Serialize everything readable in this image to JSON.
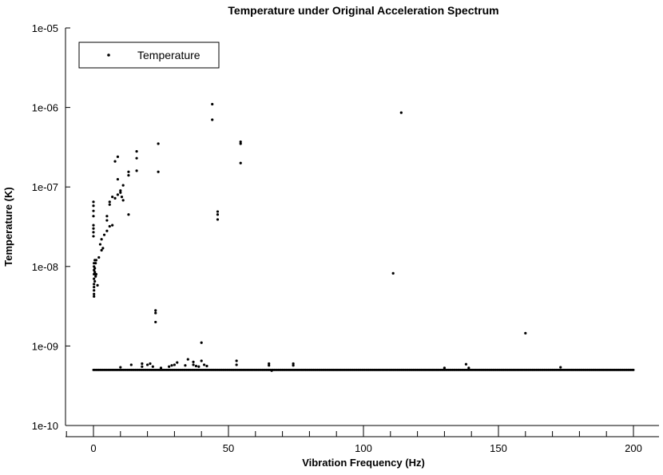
{
  "chart_data": {
    "type": "scatter",
    "title": "Temperature under Original Acceleration Spectrum",
    "xlabel": "Vibration Frequency (Hz)",
    "ylabel": "Temperature (K)",
    "xlim": [
      -10,
      210
    ],
    "ylim": [
      1e-10,
      1e-05
    ],
    "yscale": "log",
    "grid": false,
    "legend_position": "top-left",
    "x_ticks": [
      0,
      50,
      100,
      150,
      200
    ],
    "x_tick_labels": [
      "0",
      "50",
      "100",
      "150",
      "200"
    ],
    "y_ticks": [
      1e-10,
      1e-09,
      1e-08,
      1e-07,
      1e-06,
      1e-05
    ],
    "y_tick_labels": [
      "1e-10",
      "1e-09",
      "1e-08",
      "1e-07",
      "1e-06",
      "1e-05"
    ],
    "baseline": {
      "value": 5e-10,
      "x_start": 0,
      "x_end": 200,
      "step": 0.5
    },
    "series": [
      {
        "name": "Temperature",
        "color": "#000000",
        "points": [
          [
            0,
            6.5e-08
          ],
          [
            0,
            5.8e-08
          ],
          [
            0,
            5e-08
          ],
          [
            0,
            4.3e-08
          ],
          [
            0,
            3.3e-08
          ],
          [
            0,
            3e-08
          ],
          [
            0,
            2.7e-08
          ],
          [
            0,
            2.4e-08
          ],
          [
            0.2,
            1.1e-08
          ],
          [
            0.2,
            1e-08
          ],
          [
            0.2,
            9e-09
          ],
          [
            0.2,
            8e-09
          ],
          [
            0.2,
            7e-09
          ],
          [
            0.2,
            6e-09
          ],
          [
            0.2,
            5.5e-09
          ],
          [
            0.2,
            5e-09
          ],
          [
            0.2,
            4.5e-09
          ],
          [
            0.2,
            4.2e-09
          ],
          [
            0.5,
            1.2e-08
          ],
          [
            0.5,
            9.5e-09
          ],
          [
            0.5,
            8.5e-09
          ],
          [
            0.5,
            6.5e-09
          ],
          [
            0.8,
            1.1e-08
          ],
          [
            0.8,
            7.5e-09
          ],
          [
            1,
            1.2e-08
          ],
          [
            1,
            8e-09
          ],
          [
            1.5,
            5.8e-09
          ],
          [
            2,
            1.3e-08
          ],
          [
            2.5,
            1.9e-08
          ],
          [
            3,
            1.6e-08
          ],
          [
            3,
            2.2e-08
          ],
          [
            3.5,
            1.7e-08
          ],
          [
            4,
            2.5e-08
          ],
          [
            5,
            3.8e-08
          ],
          [
            5,
            4.3e-08
          ],
          [
            5,
            2.8e-08
          ],
          [
            6,
            6e-08
          ],
          [
            6,
            6.5e-08
          ],
          [
            6,
            3.2e-08
          ],
          [
            7,
            7.5e-08
          ],
          [
            7,
            3.3e-08
          ],
          [
            8,
            7.2e-08
          ],
          [
            8,
            2.1e-07
          ],
          [
            9,
            2.4e-07
          ],
          [
            9,
            1.25e-07
          ],
          [
            9,
            8e-08
          ],
          [
            10,
            9e-08
          ],
          [
            10,
            8.5e-08
          ],
          [
            10.5,
            7.5e-08
          ],
          [
            11,
            1.05e-07
          ],
          [
            11,
            6.8e-08
          ],
          [
            13,
            4.5e-08
          ],
          [
            13,
            1.4e-07
          ],
          [
            13,
            1.55e-07
          ],
          [
            16,
            2.8e-07
          ],
          [
            16,
            2.3e-07
          ],
          [
            16,
            1.6e-07
          ],
          [
            23,
            2.8e-09
          ],
          [
            23,
            2.6e-09
          ],
          [
            23,
            2e-09
          ],
          [
            24,
            3.5e-07
          ],
          [
            24,
            1.55e-07
          ],
          [
            35,
            6.8e-10
          ],
          [
            40,
            1.1e-09
          ],
          [
            44,
            1.1e-06
          ],
          [
            44,
            7e-07
          ],
          [
            46,
            4.9e-08
          ],
          [
            46,
            4.5e-08
          ],
          [
            46,
            3.9e-08
          ],
          [
            54.5,
            3.7e-07
          ],
          [
            54.5,
            3.5e-07
          ],
          [
            54.5,
            2e-07
          ],
          [
            111,
            8.2e-09
          ],
          [
            114,
            8.6e-07
          ],
          [
            160,
            1.45e-09
          ],
          [
            10,
            5.4e-10
          ],
          [
            14,
            5.8e-10
          ],
          [
            18,
            6e-10
          ],
          [
            18,
            5.5e-10
          ],
          [
            20,
            5.8e-10
          ],
          [
            21,
            6e-10
          ],
          [
            22,
            5.5e-10
          ],
          [
            25,
            5.3e-10
          ],
          [
            28,
            5.5e-10
          ],
          [
            29,
            5.7e-10
          ],
          [
            30,
            5.8e-10
          ],
          [
            31,
            6.2e-10
          ],
          [
            34,
            5.7e-10
          ],
          [
            37,
            5.8e-10
          ],
          [
            37,
            6.3e-10
          ],
          [
            38,
            5.6e-10
          ],
          [
            39,
            5.5e-10
          ],
          [
            40,
            6.5e-10
          ],
          [
            41,
            5.8e-10
          ],
          [
            42,
            5.6e-10
          ],
          [
            53,
            6.5e-10
          ],
          [
            53,
            5.8e-10
          ],
          [
            65,
            6e-10
          ],
          [
            65,
            5.7e-10
          ],
          [
            66,
            4.9e-10
          ],
          [
            74,
            6e-10
          ],
          [
            74,
            5.7e-10
          ],
          [
            130,
            5.3e-10
          ],
          [
            138,
            5.9e-10
          ],
          [
            139,
            5.3e-10
          ],
          [
            173,
            5.4e-10
          ]
        ]
      }
    ]
  }
}
